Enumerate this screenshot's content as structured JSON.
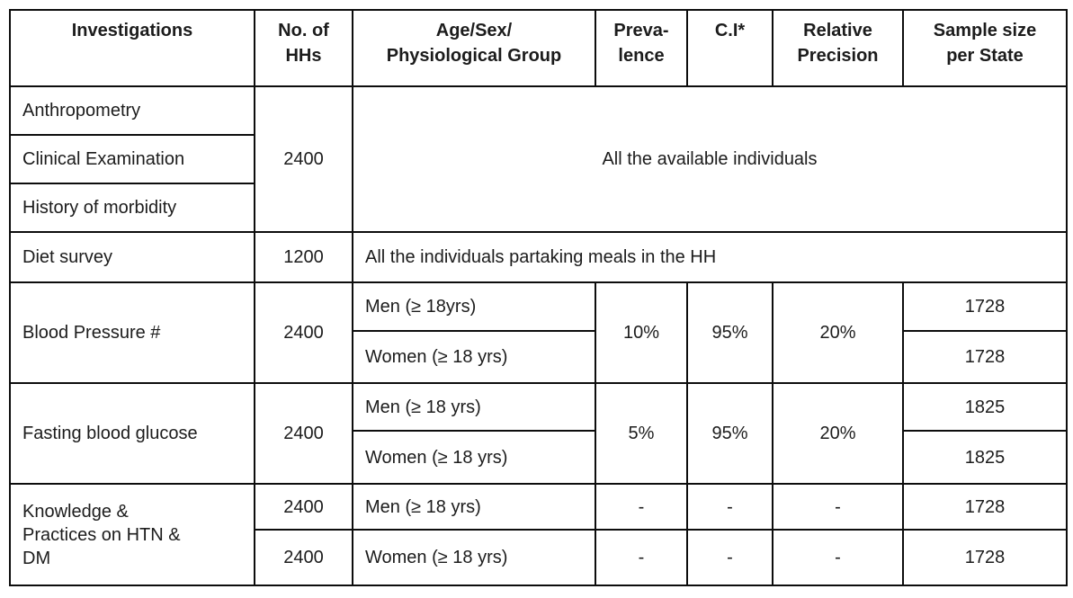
{
  "header": {
    "columns": [
      "Investigations",
      "No. of\nHHs",
      "Age/Sex/\nPhysiological Group",
      "Preva-\nlence",
      "C.I*",
      "Relative\nPrecision",
      "Sample size\nper State"
    ]
  },
  "rows": {
    "anthropometry": {
      "investigation": "Anthropometry"
    },
    "clinical": {
      "investigation": "Clinical Examination"
    },
    "history": {
      "investigation": "History of morbidity"
    },
    "group1": {
      "hhs": "2400",
      "group": "All the available individuals"
    },
    "diet": {
      "investigation": "Diet survey",
      "hhs": "1200",
      "group": "All the individuals partaking meals in the HH"
    },
    "blood_pressure": {
      "investigation": "Blood Pressure #",
      "hhs": "2400",
      "men_group": "Men (≥ 18yrs)",
      "women_group": "Women (≥ 18 yrs)",
      "prevalence": "10%",
      "ci": "95%",
      "relative_precision": "20%",
      "men_sample": "1728",
      "women_sample": "1728"
    },
    "fasting_glucose": {
      "investigation": "Fasting blood glucose",
      "hhs": "2400",
      "men_group": "Men (≥ 18 yrs)",
      "women_group": "Women (≥ 18 yrs)",
      "prevalence": "5%",
      "ci": "95%",
      "relative_precision": "20%",
      "men_sample": "1825",
      "women_sample": "1825"
    },
    "knowledge_practices": {
      "investigation": "Knowledge &\nPractices on HTN &\nDM",
      "men_hhs": "2400",
      "women_hhs": "2400",
      "men_group": "Men (≥ 18 yrs)",
      "women_group": "Women (≥ 18 yrs)",
      "men_prevalence": "-",
      "men_ci": "-",
      "men_relative_precision": "-",
      "women_prevalence": "-",
      "women_ci": "-",
      "women_relative_precision": "-",
      "men_sample": "1728",
      "women_sample": "1728"
    }
  }
}
